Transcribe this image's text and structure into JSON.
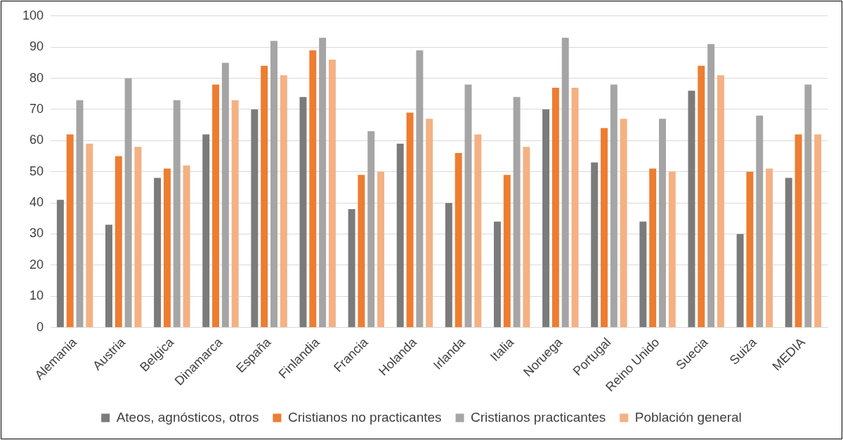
{
  "chart_data": {
    "type": "bar",
    "categories": [
      "Alemania",
      "Austria",
      "Belgica",
      "Dinamarca",
      "España",
      "Finlandia",
      "Francia",
      "Holanda",
      "Irlanda",
      "Italia",
      "Noruega",
      "Portugal",
      "Reino Unido",
      "Suecia",
      "Suiza",
      "MEDIA"
    ],
    "series": [
      {
        "name": "Ateos, agnósticos, otros",
        "color": "#7b7b7b",
        "values": [
          41,
          33,
          48,
          62,
          70,
          74,
          38,
          59,
          40,
          34,
          70,
          53,
          34,
          76,
          30,
          48
        ]
      },
      {
        "name": "Cristianos no practicantes",
        "color": "#ed7d31",
        "values": [
          62,
          55,
          51,
          78,
          84,
          89,
          49,
          69,
          56,
          49,
          77,
          64,
          51,
          84,
          50,
          62
        ]
      },
      {
        "name": "Cristianos practicantes",
        "color": "#a5a5a5",
        "values": [
          73,
          80,
          73,
          85,
          92,
          93,
          63,
          89,
          78,
          74,
          93,
          78,
          67,
          91,
          68,
          78
        ]
      },
      {
        "name": "Población general",
        "color": "#f4b183",
        "values": [
          59,
          58,
          52,
          73,
          81,
          86,
          50,
          67,
          62,
          58,
          77,
          67,
          50,
          81,
          51,
          62
        ]
      }
    ],
    "ylim": [
      0,
      100
    ],
    "yticks": [
      0,
      10,
      20,
      30,
      40,
      50,
      60,
      70,
      80,
      90,
      100
    ],
    "grid": "y",
    "legend": "bottom"
  }
}
